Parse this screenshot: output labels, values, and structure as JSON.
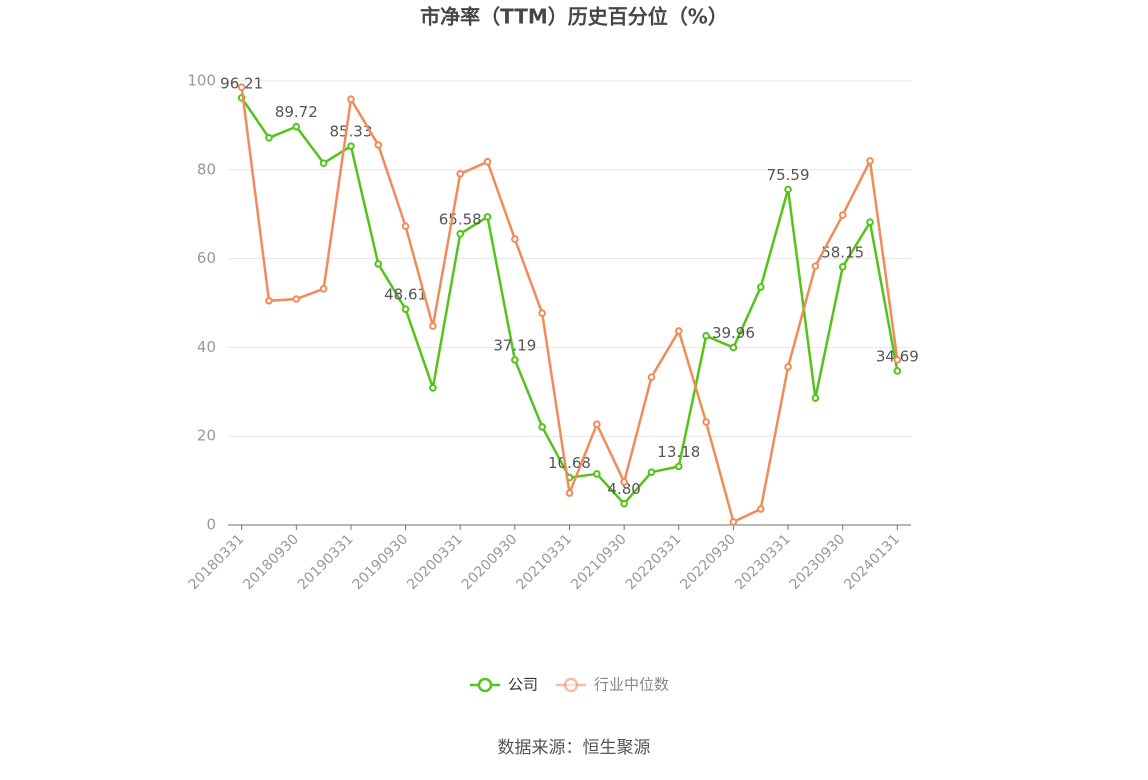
{
  "chart_data": {
    "type": "line",
    "title": "市净率（TTM）历史百分位（%）",
    "source": "数据来源：恒生聚源",
    "categories": [
      "20180331",
      null,
      "20180930",
      null,
      "20190331",
      null,
      "20190930",
      null,
      "20200331",
      null,
      "20200930",
      null,
      "20210331",
      null,
      "20210930",
      null,
      "20220331",
      null,
      "20220930",
      null,
      "20230331",
      null,
      "20230930",
      null,
      "20240131"
    ],
    "ylim": [
      0,
      100
    ],
    "yticks": [
      0,
      20,
      40,
      60,
      80,
      100
    ],
    "grid": true,
    "legend": "bottom",
    "series": [
      {
        "name": "公司",
        "color": "#52c41a",
        "values": [
          96.21,
          87.2,
          89.72,
          81.5,
          85.33,
          58.8,
          48.61,
          30.9,
          65.58,
          69.4,
          37.19,
          22.1,
          10.68,
          11.5,
          4.8,
          11.9,
          13.18,
          42.6,
          39.96,
          53.6,
          75.59,
          28.6,
          58.15,
          68.2,
          34.69
        ],
        "value_labels": [
          "96.21",
          null,
          "89.72",
          null,
          "85.33",
          null,
          "48.61",
          null,
          "65.58",
          null,
          "37.19",
          null,
          "10.68",
          null,
          "4.80",
          null,
          "13.18",
          null,
          "39.96",
          null,
          "75.59",
          null,
          "58.15",
          null,
          "34.69"
        ]
      },
      {
        "name": "行业中位数",
        "color": "#f08c5a",
        "values": [
          98.6,
          50.5,
          50.9,
          53.2,
          95.9,
          85.6,
          67.3,
          44.8,
          79.1,
          81.8,
          64.4,
          47.7,
          7.2,
          22.7,
          9.7,
          33.3,
          43.7,
          23.2,
          0.7,
          3.6,
          35.6,
          58.3,
          69.8,
          82.0,
          37.2
        ]
      }
    ]
  }
}
